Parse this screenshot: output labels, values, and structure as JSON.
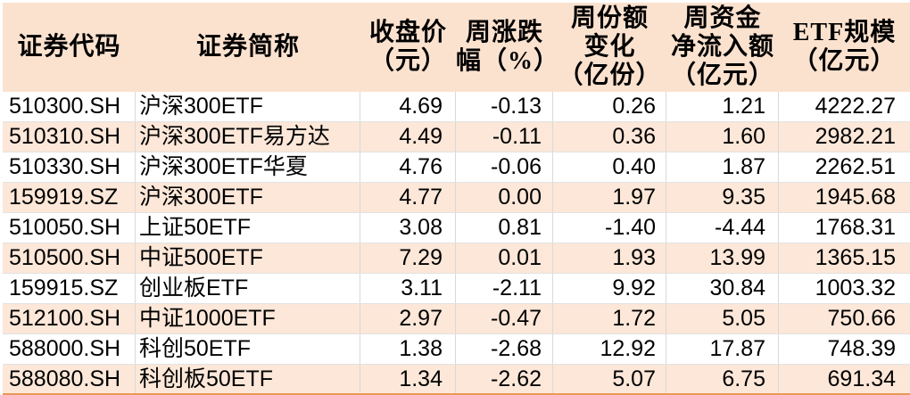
{
  "colors": {
    "header_fill": "#fbe2cf",
    "row_alt_fill": "#fce7d8",
    "grid_line": "#d9d9d9",
    "row_line": "#e2e2e2",
    "bottom_border": "#e8995a",
    "text": "#000000",
    "page_bg": "#ffffff"
  },
  "table": {
    "header_display": [
      "证券代码",
      "证券简称",
      "收盘价\n（元）",
      "周涨跌\n幅（%）",
      "周份额\n变化\n（亿份）",
      "周资金\n净流入额\n（亿元）",
      "ETF规模\n（亿元）"
    ]
  },
  "chart_data": {
    "type": "table",
    "title": "",
    "columns": [
      "证券代码",
      "证券简称",
      "收盘价（元）",
      "周涨跌幅（%）",
      "周份额变化（亿份）",
      "周资金净流入额（亿元）",
      "ETF规模（亿元）"
    ],
    "rows": [
      [
        "510300.SH",
        "沪深300ETF",
        "4.69",
        "-0.13",
        "0.26",
        "1.21",
        "4222.27"
      ],
      [
        "510310.SH",
        "沪深300ETF易方达",
        "4.49",
        "-0.11",
        "0.36",
        "1.60",
        "2982.21"
      ],
      [
        "510330.SH",
        "沪深300ETF华夏",
        "4.76",
        "-0.06",
        "0.40",
        "1.87",
        "2262.51"
      ],
      [
        "159919.SZ",
        "沪深300ETF",
        "4.77",
        "0.00",
        "1.97",
        "9.35",
        "1945.68"
      ],
      [
        "510050.SH",
        "上证50ETF",
        "3.08",
        "0.81",
        "-1.40",
        "-4.44",
        "1768.31"
      ],
      [
        "510500.SH",
        "中证500ETF",
        "7.29",
        "0.01",
        "1.93",
        "13.99",
        "1365.15"
      ],
      [
        "159915.SZ",
        "创业板ETF",
        "3.11",
        "-2.11",
        "9.92",
        "30.84",
        "1003.32"
      ],
      [
        "512100.SH",
        "中证1000ETF",
        "2.97",
        "-0.47",
        "1.72",
        "5.05",
        "750.66"
      ],
      [
        "588000.SH",
        "科创50ETF",
        "1.38",
        "-2.68",
        "12.92",
        "17.87",
        "748.39"
      ],
      [
        "588080.SH",
        "科创板50ETF",
        "1.34",
        "-2.62",
        "5.07",
        "6.75",
        "691.34"
      ]
    ],
    "layout": {
      "alternating_row_fill": "odd data rows white, even data rows peach",
      "header_rows": 1,
      "gridlines": true,
      "bottom_rule": "orange"
    }
  }
}
